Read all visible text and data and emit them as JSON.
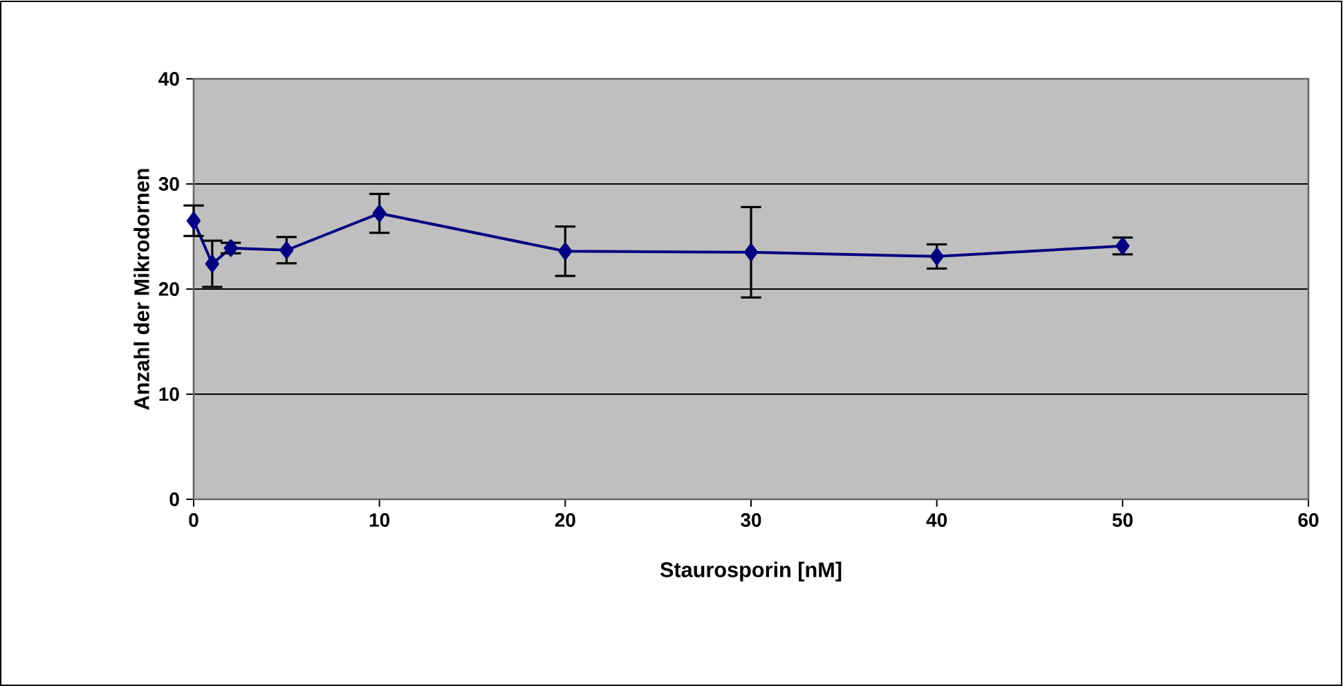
{
  "chart_data": {
    "type": "line",
    "xlabel": "Staurosporin [nM]",
    "ylabel": "Anzahl der Mikrodornen",
    "x": [
      0,
      1,
      2,
      5,
      10,
      20,
      30,
      40,
      50
    ],
    "series": [
      {
        "color": "#000080",
        "values": [
          26.5,
          22.4,
          23.9,
          23.7,
          27.2,
          23.6,
          23.5,
          23.1,
          24.1
        ],
        "errors": [
          1.45,
          2.2,
          0.5,
          1.25,
          1.85,
          2.35,
          4.3,
          1.15,
          0.8
        ]
      }
    ],
    "xlim": [
      0,
      60
    ],
    "xticks": [
      0,
      10,
      20,
      30,
      40,
      50,
      60
    ],
    "ylim": [
      0,
      40
    ],
    "yticks": [
      0,
      10,
      20,
      30,
      40
    ],
    "grid": "y",
    "marker": "diamond",
    "line_style": "solid"
  }
}
